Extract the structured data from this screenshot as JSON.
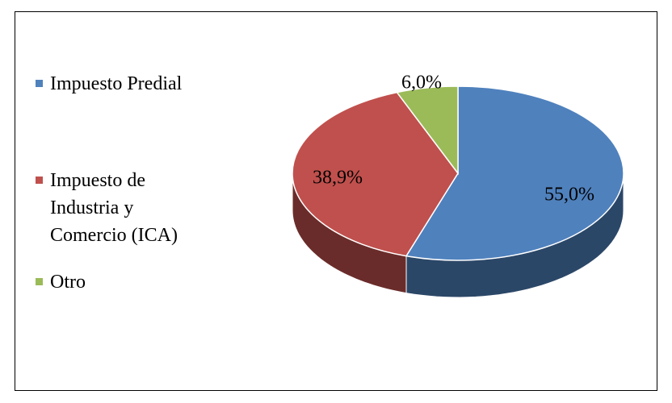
{
  "chart_data": {
    "type": "pie",
    "categories": [
      "Impuesto Predial",
      "Impuesto de Industria y Comercio (ICA)",
      "Otro"
    ],
    "values": [
      55.0,
      38.9,
      6.0
    ],
    "value_labels": [
      "55,0%",
      "38,9%",
      "6,0%"
    ],
    "colors": [
      "#4f81bd",
      "#c0504d",
      "#9bbb59"
    ],
    "legend": "left"
  }
}
